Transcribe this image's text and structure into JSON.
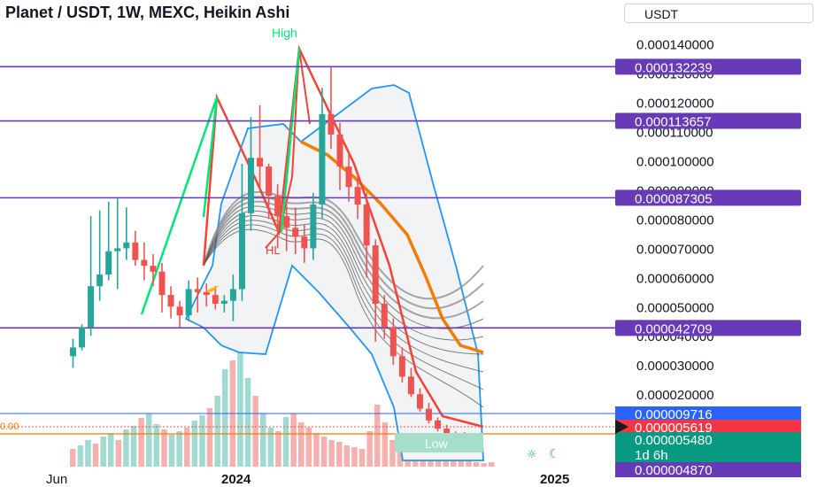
{
  "header": {
    "title": "Planet / USDT, 1W, MEXC, Heikin Ashi",
    "currency": "USDT"
  },
  "annotations": {
    "high": "High",
    "higher_low": "HL",
    "low": "Low"
  },
  "icons": [
    "sun-icon",
    "moon-icon"
  ],
  "colors": {
    "bull": "#26a69a",
    "bear": "#ef5350",
    "level_line": "#673ab7",
    "band": "#2196f3",
    "orange": "#f57c00",
    "green_line": "#00e676",
    "red_line": "#f44336"
  },
  "chart_data": {
    "type": "candlestick",
    "x_labels": [
      "Jun",
      "2024",
      "2025"
    ],
    "y_ticks": [
      "0.000140000",
      "0.000130000",
      "0.000120000",
      "0.000110000",
      "0.000100000",
      "0.000090000",
      "0.000080000",
      "0.000070000",
      "0.000060000",
      "0.000050000",
      "0.000040000",
      "0.000030000",
      "0.000020000"
    ],
    "y_range": [
      4e-06,
      0.000145
    ],
    "horizontal_levels": [
      "0.000132239",
      "0.000113657",
      "0.000087305",
      "0.000042709"
    ],
    "price_labels": [
      {
        "text": "0.000009716",
        "color": "#2962ff"
      },
      {
        "text": "0.000005619",
        "color": "#f23645"
      },
      {
        "text": "0.000005480",
        "color": "#089981"
      },
      {
        "text": "1d 6h",
        "color": "#089981"
      },
      {
        "text": "0.000004870",
        "color": "#673ab7"
      }
    ],
    "series": [
      {
        "type": "candles",
        "ohlc": [
          [
            3.3,
            3.9,
            2.9,
            3.6
          ],
          [
            3.6,
            4.4,
            3.5,
            4.3
          ],
          [
            4.3,
            8.1,
            4.0,
            5.7
          ],
          [
            5.7,
            8.3,
            5.2,
            6.1
          ],
          [
            6.1,
            8.6,
            5.9,
            6.9
          ],
          [
            6.9,
            8.7,
            5.6,
            7.0
          ],
          [
            7.0,
            8.4,
            6.6,
            7.2
          ],
          [
            7.2,
            7.6,
            6.4,
            6.6
          ],
          [
            6.6,
            7.2,
            5.9,
            6.4
          ],
          [
            6.4,
            6.8,
            5.7,
            6.2
          ],
          [
            6.2,
            6.5,
            4.8,
            5.4
          ],
          [
            5.4,
            5.7,
            4.6,
            5.0
          ],
          [
            5.0,
            5.2,
            4.3,
            4.7
          ],
          [
            4.7,
            5.9,
            4.5,
            5.6
          ],
          [
            5.6,
            6.0,
            4.8,
            5.5
          ],
          [
            5.5,
            5.8,
            5.0,
            5.4
          ],
          [
            5.4,
            5.7,
            4.9,
            5.1
          ],
          [
            5.1,
            5.4,
            4.8,
            5.2
          ],
          [
            5.2,
            6.1,
            4.5,
            5.6
          ],
          [
            5.6,
            9.9,
            5.2,
            8.2
          ],
          [
            8.2,
            11.5,
            7.6,
            10.1
          ],
          [
            10.1,
            11.9,
            9.0,
            9.8
          ],
          [
            9.8,
            9.9,
            8.0,
            8.8
          ],
          [
            8.8,
            9.2,
            7.0,
            8.1
          ],
          [
            8.1,
            8.6,
            6.9,
            7.7
          ],
          [
            7.7,
            8.4,
            6.8,
            7.4
          ],
          [
            7.4,
            7.8,
            6.5,
            7.0
          ],
          [
            7.0,
            8.9,
            6.6,
            8.5
          ],
          [
            8.5,
            12.5,
            8.0,
            11.6
          ],
          [
            11.6,
            13.2,
            10.4,
            10.9
          ],
          [
            10.9,
            11.3,
            9.0,
            9.8
          ],
          [
            9.8,
            10.3,
            8.6,
            9.1
          ],
          [
            9.1,
            9.6,
            8.0,
            8.5
          ],
          [
            8.5,
            8.9,
            6.0,
            7.1
          ],
          [
            7.1,
            7.3,
            3.8,
            5.1
          ],
          [
            5.1,
            5.4,
            3.9,
            4.3
          ],
          [
            4.3,
            4.6,
            3.0,
            3.3
          ],
          [
            3.3,
            3.6,
            2.4,
            2.6
          ],
          [
            2.6,
            2.9,
            1.9,
            2.0
          ],
          [
            2.0,
            2.2,
            1.4,
            1.5
          ],
          [
            1.5,
            1.7,
            1.0,
            1.1
          ],
          [
            1.1,
            1.2,
            0.72,
            0.82
          ],
          [
            0.82,
            0.95,
            0.59,
            0.62
          ],
          [
            0.62,
            0.72,
            0.52,
            0.57
          ],
          [
            0.57,
            0.7,
            0.5,
            0.56
          ],
          [
            0.56,
            0.64,
            0.48,
            0.55
          ]
        ]
      }
    ]
  }
}
